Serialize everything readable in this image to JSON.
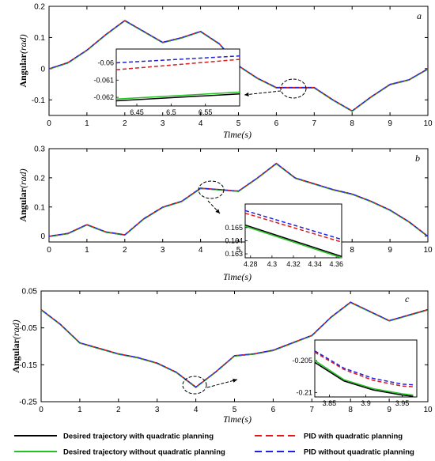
{
  "colors": {
    "desired_qp": "#000000",
    "desired_noqp": "#22c322",
    "pid_qp": "#e01818",
    "pid_noqp": "#2020e0"
  },
  "legend": [
    {
      "label": "Desired trajectory with quadratic planning",
      "style": "solid",
      "color_key": "desired_qp"
    },
    {
      "label": "PID with quadratic planning",
      "style": "dashed",
      "color_key": "pid_qp"
    },
    {
      "label": "Desired trajectory without quadratic planning",
      "style": "solid",
      "color_key": "desired_noqp"
    },
    {
      "label": "PID without quadratic planning",
      "style": "dashed",
      "color_key": "pid_noqp"
    }
  ],
  "chart_data": [
    {
      "type": "line",
      "panel_label": "a",
      "ylabel": "Angular",
      "ylabel_unit": "(rad)",
      "xlabel": "Time(s)",
      "xlim": [
        0,
        10
      ],
      "ylim": [
        -0.15,
        0.2
      ],
      "xticks": [
        0,
        1,
        2,
        3,
        4,
        5,
        6,
        7,
        8,
        9,
        10
      ],
      "yticks": [
        -0.1,
        0,
        0.1,
        0.2
      ],
      "ytick_labels": [
        "-0.1",
        "0",
        "0.1",
        "0.2"
      ],
      "x": [
        0,
        0.5,
        1,
        1.5,
        2,
        2.5,
        3,
        3.5,
        4,
        4.5,
        5,
        5.5,
        6,
        6.5,
        7,
        7.5,
        8,
        8.5,
        9,
        9.5,
        10
      ],
      "series": [
        {
          "name": "Desired trajectory with quadratic planning",
          "values": [
            0,
            0.02,
            0.06,
            0.11,
            0.155,
            0.12,
            0.085,
            0.1,
            0.12,
            0.08,
            0.01,
            -0.03,
            -0.06,
            -0.06,
            -0.06,
            -0.1,
            -0.135,
            -0.09,
            -0.05,
            -0.035,
            0
          ]
        }
      ],
      "inset": {
        "xlim": [
          6.42,
          6.6
        ],
        "ylim": [
          -0.0625,
          -0.0592
        ],
        "xticks": [
          6.45,
          6.5,
          6.55
        ],
        "xtick_labels": [
          "6.45",
          "6.5",
          "6.55"
        ],
        "yticks": [
          -0.06,
          -0.061,
          -0.062
        ],
        "ytick_labels": [
          "-0.06",
          "-0.061",
          "-0.062"
        ],
        "lines": {
          "pid_noqp": [
            -0.06,
            -0.0596
          ],
          "pid_qp": [
            -0.0604,
            -0.0598
          ],
          "desired_qp": [
            -0.0622,
            -0.0618
          ],
          "desired_noqp": [
            -0.0621,
            -0.0617
          ]
        }
      }
    },
    {
      "type": "line",
      "panel_label": "b",
      "ylabel": "Angular",
      "ylabel_unit": "(rad)",
      "xlabel": "Time(s)",
      "xlim": [
        0,
        10
      ],
      "ylim": [
        -0.02,
        0.3
      ],
      "xticks": [
        0,
        1,
        2,
        3,
        4,
        5,
        6,
        7,
        8,
        9,
        10
      ],
      "yticks": [
        0,
        0.1,
        0.2,
        0.3
      ],
      "ytick_labels": [
        "0",
        "0.1",
        "0.2",
        "0.3"
      ],
      "x": [
        0,
        0.5,
        1,
        1.5,
        2,
        2.5,
        3,
        3.5,
        4,
        4.5,
        5,
        5.5,
        6,
        6.5,
        7,
        7.5,
        8,
        8.5,
        9,
        9.5,
        10
      ],
      "series": [
        {
          "name": "Desired trajectory with quadratic planning",
          "values": [
            0,
            0.01,
            0.04,
            0.015,
            0.005,
            0.06,
            0.1,
            0.12,
            0.165,
            0.16,
            0.155,
            0.2,
            0.25,
            0.2,
            0.18,
            0.16,
            0.145,
            0.12,
            0.09,
            0.05,
            0
          ]
        }
      ],
      "inset": {
        "xlim": [
          4.275,
          4.365
        ],
        "ylim": [
          0.1627,
          0.1668
        ],
        "xticks": [
          4.28,
          4.3,
          4.32,
          4.34,
          4.36
        ],
        "xtick_labels": [
          "4.28",
          "4.3",
          "4.32",
          "4.34",
          "4.36"
        ],
        "yticks": [
          0.165,
          0.164,
          0.163
        ],
        "ytick_labels": [
          "0.165",
          "0.164",
          "0.163"
        ],
        "lines": {
          "pid_noqp": [
            0.1663,
            0.1641
          ],
          "pid_qp": [
            0.1661,
            0.1639
          ],
          "desired_qp": [
            0.1652,
            0.1628
          ],
          "desired_noqp": [
            0.1651,
            0.1627
          ]
        }
      }
    },
    {
      "type": "line",
      "panel_label": "c",
      "ylabel": "Angular",
      "ylabel_unit": "(rad)",
      "xlabel": "Time(s)",
      "xlim": [
        0,
        10
      ],
      "ylim": [
        -0.25,
        0.05
      ],
      "xticks": [
        0,
        1,
        2,
        3,
        4,
        5,
        6,
        7,
        8,
        9,
        10
      ],
      "yticks": [
        -0.25,
        -0.15,
        -0.05,
        0.05
      ],
      "ytick_labels": [
        "-0.25",
        "-0.15",
        "-0.05",
        "0.05"
      ],
      "x": [
        0,
        0.5,
        1,
        1.5,
        2,
        2.5,
        3,
        3.5,
        4,
        4.5,
        5,
        5.5,
        6,
        6.5,
        7,
        7.5,
        8,
        8.5,
        9,
        9.5,
        10
      ],
      "series": [
        {
          "name": "Desired trajectory with quadratic planning",
          "values": [
            0,
            -0.04,
            -0.09,
            -0.105,
            -0.12,
            -0.13,
            -0.145,
            -0.17,
            -0.21,
            -0.17,
            -0.125,
            -0.12,
            -0.11,
            -0.09,
            -0.07,
            -0.02,
            0.02,
            -0.005,
            -0.03,
            -0.015,
            0
          ]
        }
      ],
      "inset": {
        "xlim": [
          3.83,
          3.97
        ],
        "ylim": [
          -0.2107,
          -0.2018
        ],
        "xticks": [
          3.85,
          3.9,
          3.95
        ],
        "xtick_labels": [
          "3.85",
          "3.9",
          "3.95"
        ],
        "yticks": [
          -0.205,
          -0.21
        ],
        "ytick_labels": [
          "-0.205",
          "-0.21"
        ],
        "curves": {
          "pid_noqp": [
            [
              3.83,
              -0.2035
            ],
            [
              3.87,
              -0.2062
            ],
            [
              3.91,
              -0.2078
            ],
            [
              3.95,
              -0.2087
            ],
            [
              3.965,
              -0.2088
            ]
          ],
          "pid_qp": [
            [
              3.83,
              -0.2037
            ],
            [
              3.87,
              -0.2064
            ],
            [
              3.91,
              -0.2081
            ],
            [
              3.95,
              -0.209
            ],
            [
              3.965,
              -0.2091
            ]
          ],
          "desired_qp": [
            [
              3.83,
              -0.2053
            ],
            [
              3.87,
              -0.2082
            ],
            [
              3.91,
              -0.2096
            ],
            [
              3.95,
              -0.2104
            ],
            [
              3.965,
              -0.2106
            ]
          ],
          "desired_noqp": [
            [
              3.83,
              -0.205
            ],
            [
              3.87,
              -0.208
            ],
            [
              3.91,
              -0.2094
            ],
            [
              3.95,
              -0.2102
            ],
            [
              3.965,
              -0.2104
            ]
          ]
        }
      }
    }
  ]
}
